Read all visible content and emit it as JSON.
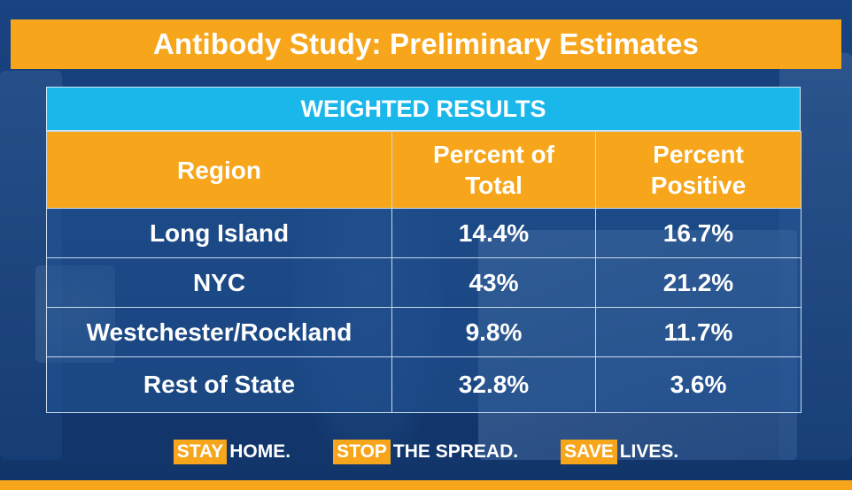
{
  "title": "Antibody Study: Preliminary Estimates",
  "table": {
    "caption": "WEIGHTED RESULTS",
    "headers": {
      "region": "Region",
      "total_line1": "Percent of",
      "total_line2": "Total",
      "positive_line1": "Percent",
      "positive_line2": "Positive"
    },
    "rows": [
      {
        "region": "Long Island",
        "percent_of_total": "14.4%",
        "percent_positive": "16.7%"
      },
      {
        "region": "NYC",
        "percent_of_total": "43%",
        "percent_positive": "21.2%"
      },
      {
        "region": "Westchester/Rockland",
        "percent_of_total": "9.8%",
        "percent_positive": "11.7%"
      },
      {
        "region": "Rest of State",
        "percent_of_total": "32.8%",
        "percent_positive": "3.6%"
      }
    ]
  },
  "footer": {
    "slogans": [
      {
        "tag": "STAY",
        "text": "HOME."
      },
      {
        "tag": "STOP",
        "text": "THE SPREAD."
      },
      {
        "tag": "SAVE",
        "text": "LIVES."
      }
    ]
  },
  "colors": {
    "accent_orange": "#f7a61c",
    "accent_cyan": "#1ab7ea",
    "background_blue": "#163f78",
    "text": "#ffffff"
  }
}
